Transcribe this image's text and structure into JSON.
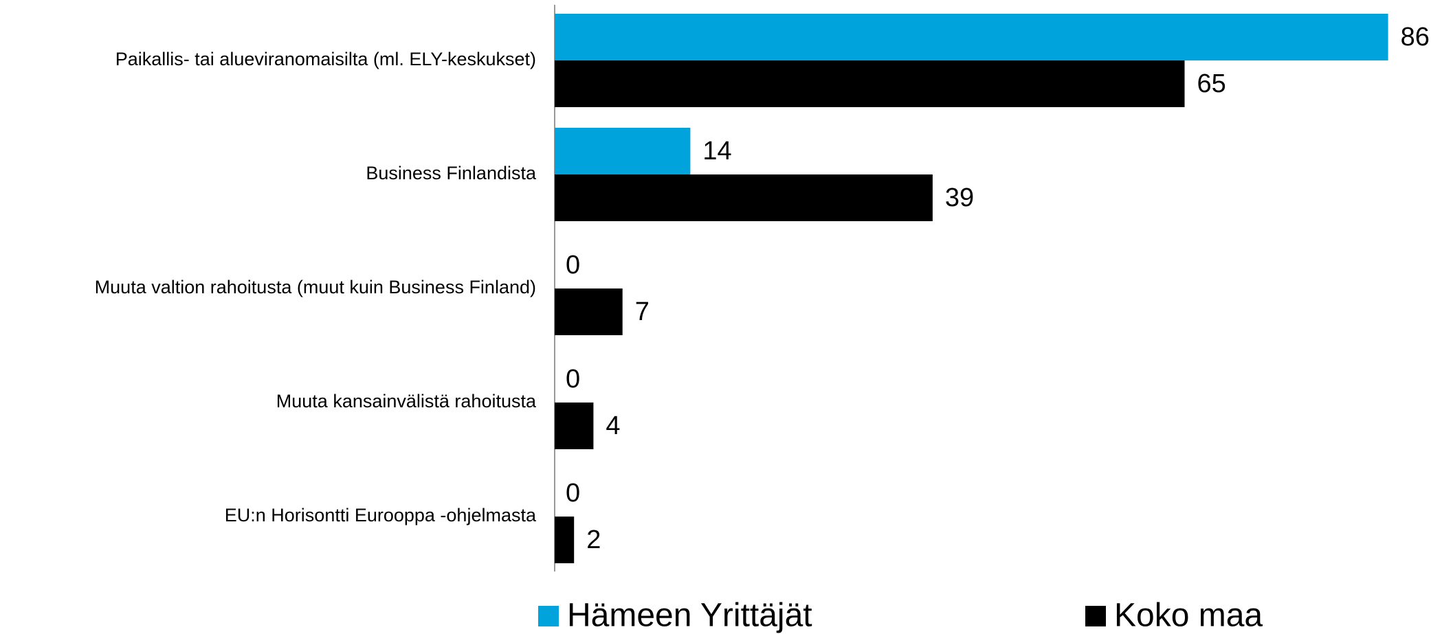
{
  "chart_data": {
    "type": "bar",
    "orientation": "horizontal",
    "categories": [
      "Paikallis- tai alueviranomaisilta (ml. ELY-keskukset)",
      "Business Finlandista",
      "Muuta valtion rahoitusta (muut kuin Business Finland)",
      "Muuta kansainvälistä rahoitusta",
      "EU:n Horisontti Eurooppa -ohjelmasta"
    ],
    "series": [
      {
        "name": "Hämeen Yrittäjät",
        "color": "#00a3db",
        "values": [
          86,
          14,
          0,
          0,
          0
        ]
      },
      {
        "name": "Koko maa",
        "color": "#000000",
        "values": [
          65,
          39,
          7,
          4,
          2
        ]
      }
    ],
    "xlim": [
      0,
      90
    ],
    "legend": "bottom"
  }
}
